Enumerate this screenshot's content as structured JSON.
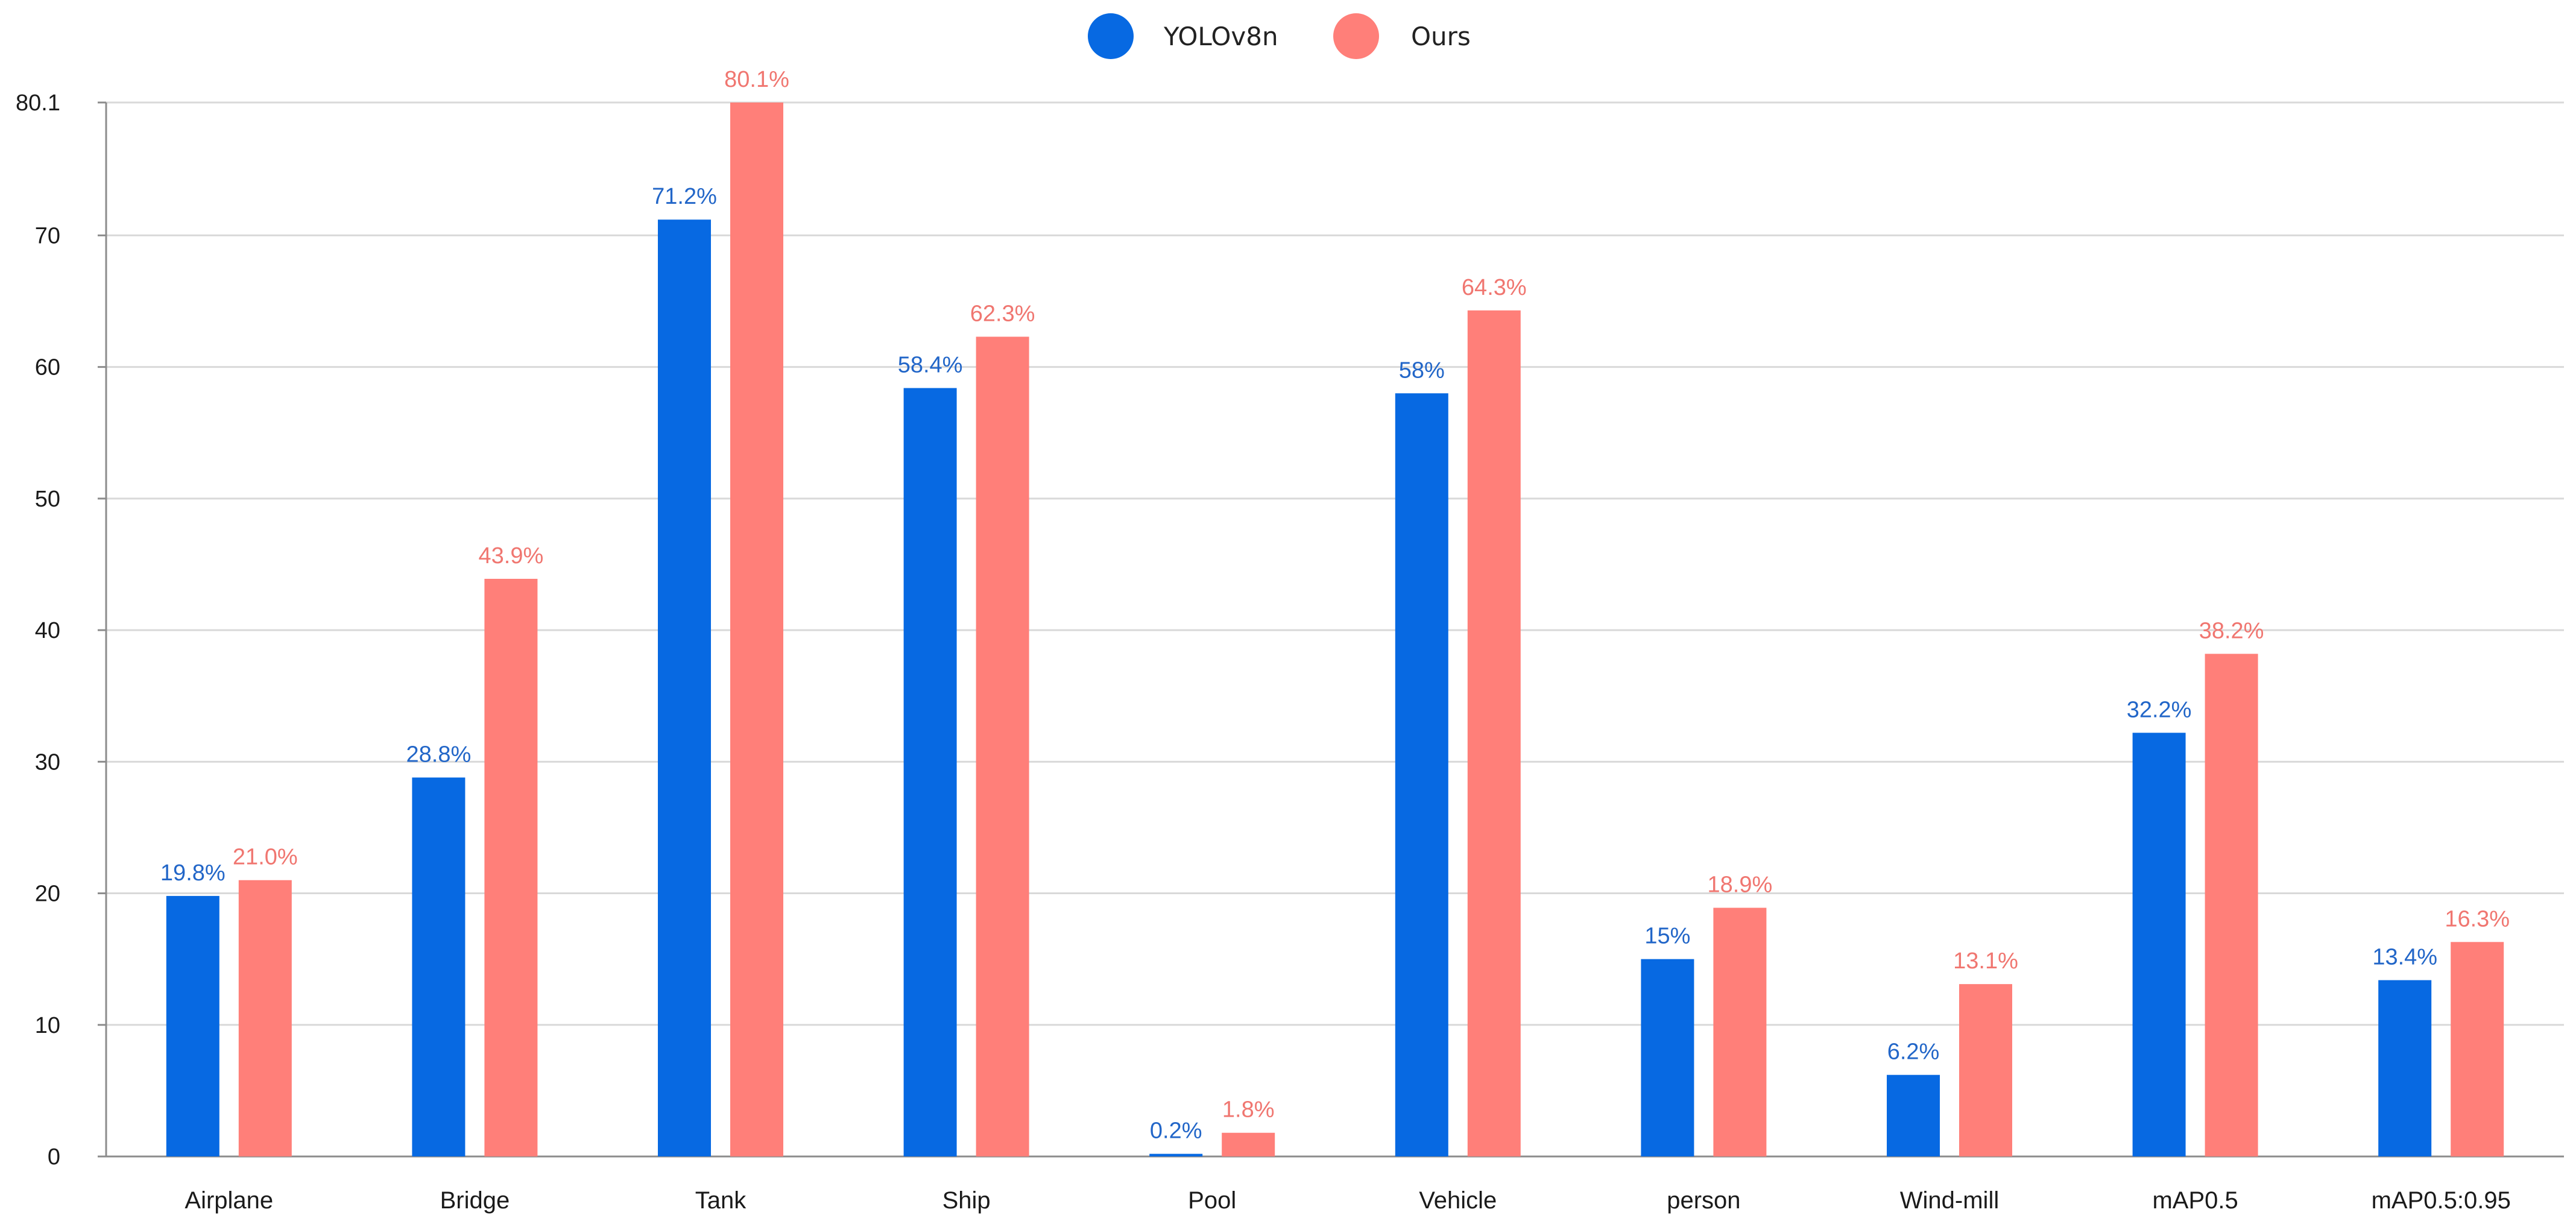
{
  "chart_data": {
    "type": "bar",
    "title": "",
    "xlabel": "",
    "ylabel": "",
    "ylim": [
      0,
      80.1
    ],
    "yticks": [
      0,
      10,
      20,
      30,
      40,
      50,
      60,
      70,
      80.1
    ],
    "ytick_labels": [
      "0",
      "10",
      "20",
      "30",
      "40",
      "50",
      "60",
      "70",
      "80.1"
    ],
    "grid": true,
    "legend_position": "top-center",
    "categories": [
      "Airplane",
      "Bridge",
      "Tank",
      "Ship",
      "Pool",
      "Vehicle",
      "person",
      "Wind-mill",
      "mAP0.5",
      "mAP0.5:0.95"
    ],
    "series": [
      {
        "name": "YOLOv8n",
        "color": "#0769E2",
        "values": [
          19.8,
          28.8,
          71.2,
          58.4,
          0.2,
          58,
          15,
          6.2,
          32.2,
          13.4
        ],
        "labels": [
          "19.8%",
          "28.8%",
          "71.2%",
          "58.4%",
          "0.2%",
          "58%",
          "15%",
          "6.2%",
          "32.2%",
          "13.4%"
        ]
      },
      {
        "name": "Ours",
        "color": "#FF7F79",
        "values": [
          21.0,
          43.9,
          80.1,
          62.3,
          1.8,
          64.3,
          18.9,
          13.1,
          38.2,
          16.3
        ],
        "labels": [
          "21.0%",
          "43.9%",
          "80.1%",
          "62.3%",
          "1.8%",
          "64.3%",
          "18.9%",
          "13.1%",
          "38.2%",
          "16.3%"
        ]
      }
    ],
    "value_label_colors": [
      "#2266C8",
      "#F07670"
    ]
  }
}
